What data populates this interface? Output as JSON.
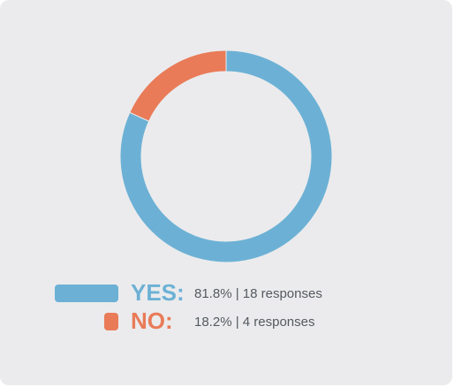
{
  "chart_data": {
    "type": "donut",
    "categories": [
      "YES:",
      "NO:"
    ],
    "values": [
      81.8,
      18.2
    ],
    "value_labels": [
      "81.8% | 18 responses",
      "18.2% | 4 responses"
    ],
    "colors": [
      "#6cb1d5",
      "#e97b58"
    ]
  }
}
